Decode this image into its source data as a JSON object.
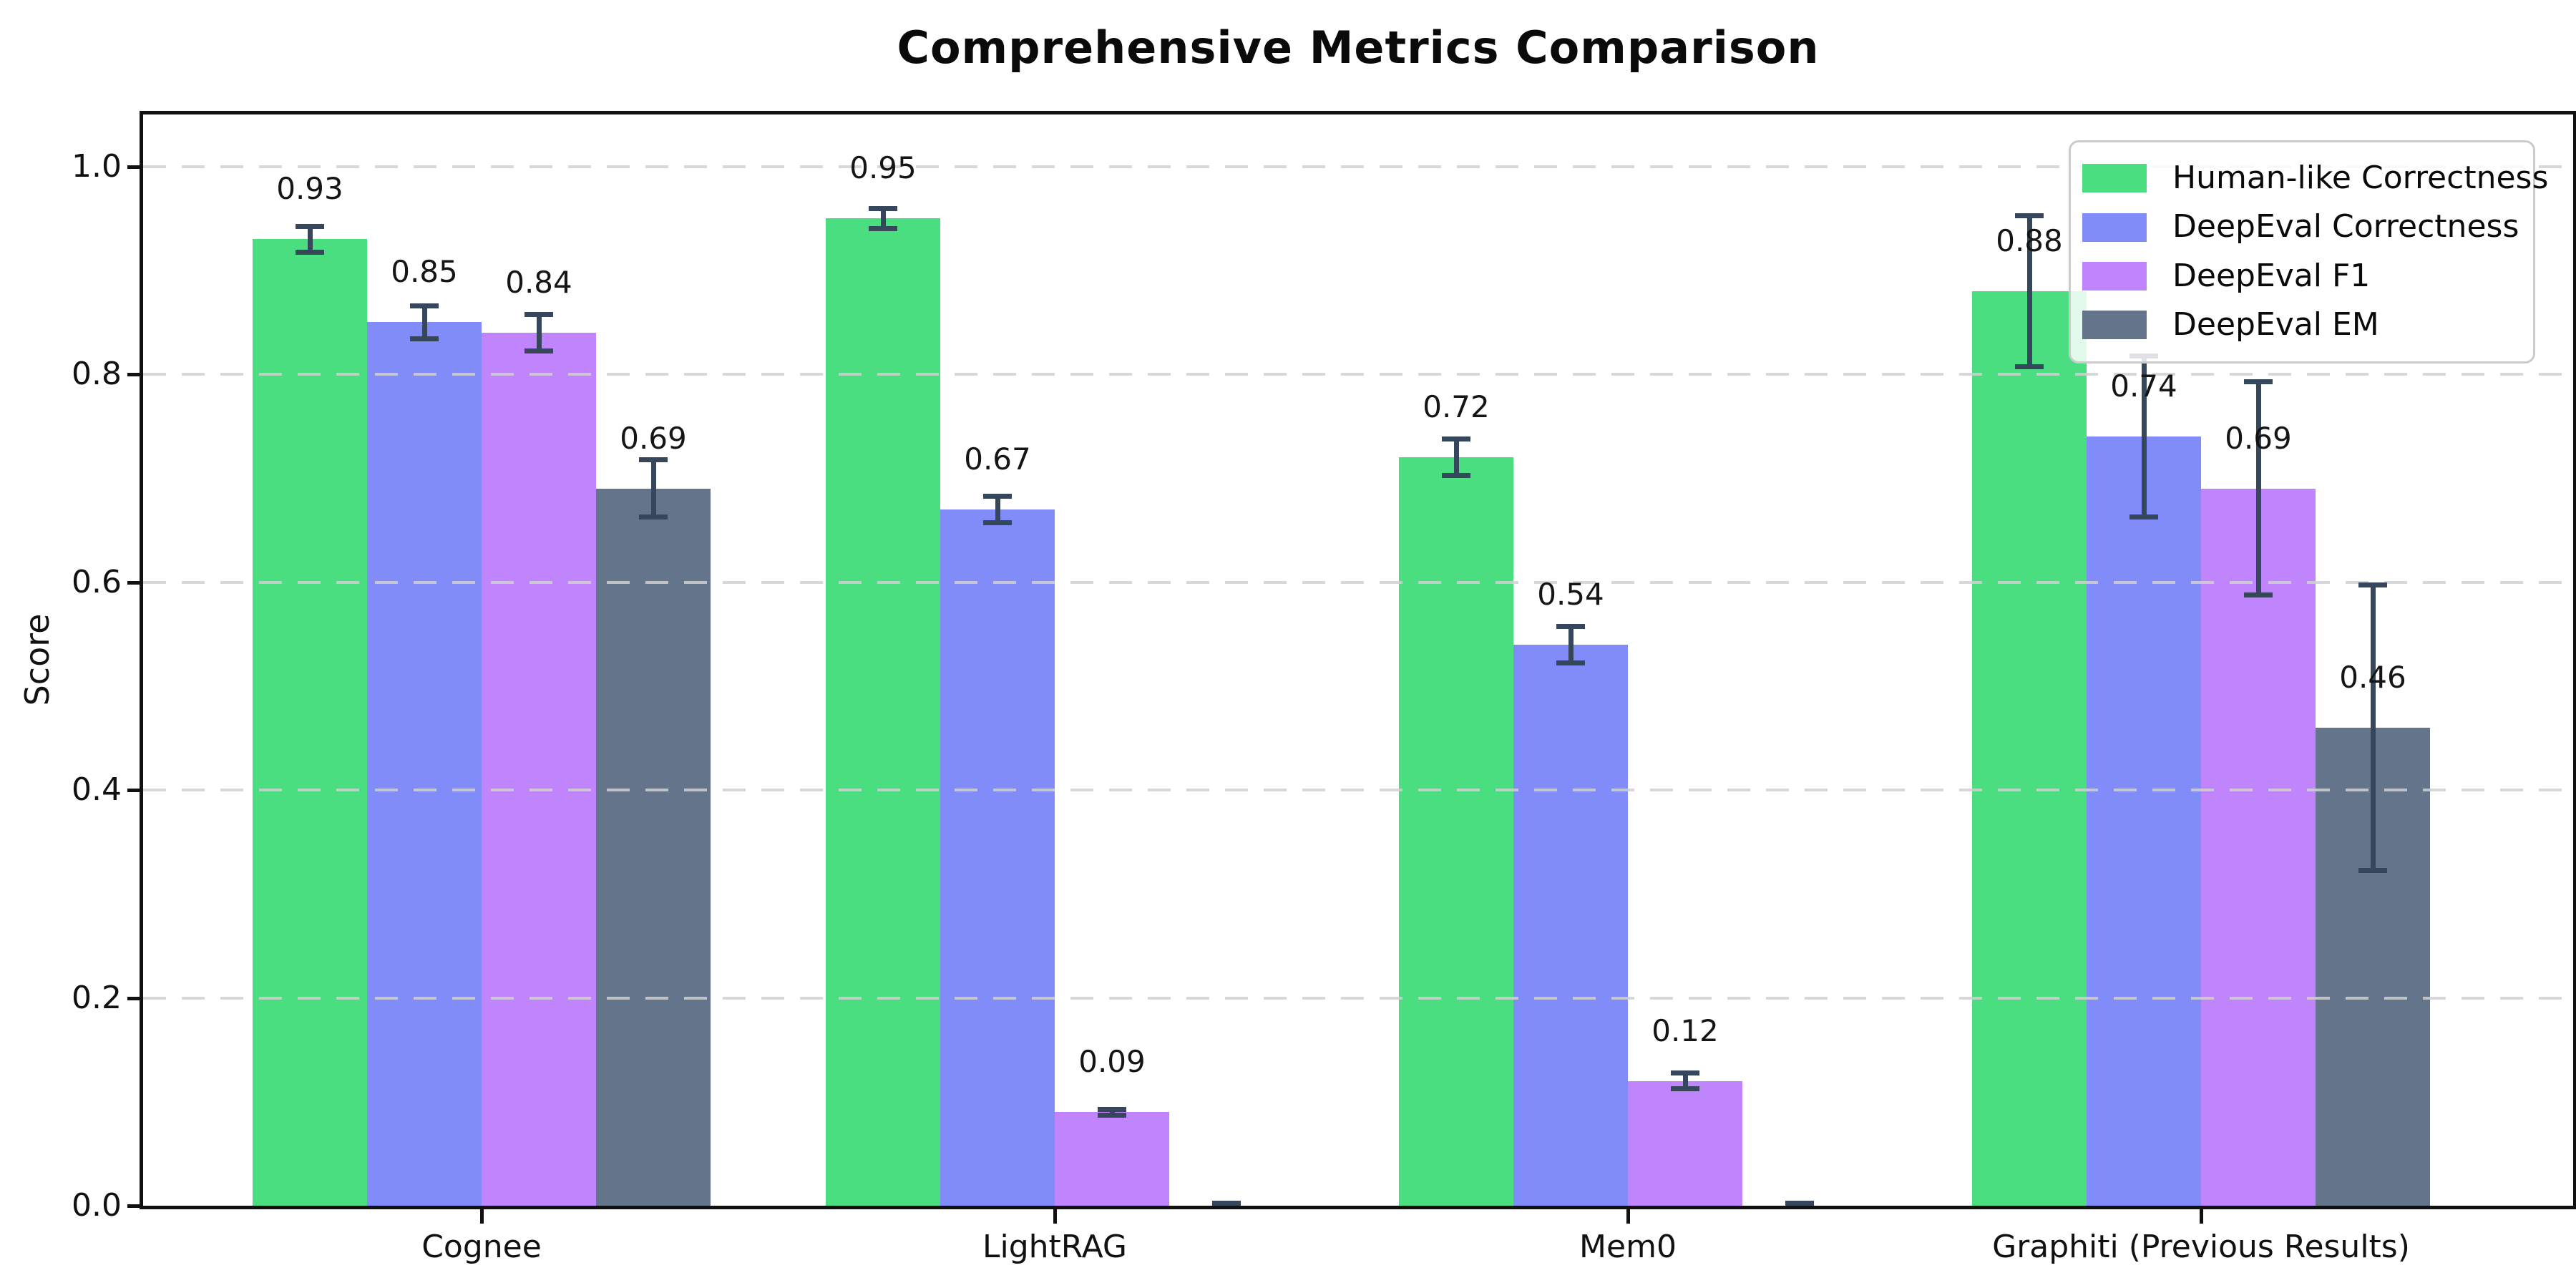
{
  "chart_data": {
    "type": "bar",
    "title": "Comprehensive Metrics Comparison",
    "ylabel": "Score",
    "xlabel": "",
    "categories": [
      "Cognee",
      "LightRAG",
      "Mem0",
      "Graphiti (Previous Results)"
    ],
    "series": [
      {
        "name": "Human-like Correctness",
        "color": "#4ade80",
        "values": [
          0.93,
          0.95,
          0.72,
          0.88
        ],
        "errors": [
          0.015,
          0.012,
          0.02,
          0.075
        ],
        "value_labels": [
          "0.93",
          "0.95",
          "0.72",
          "0.88"
        ]
      },
      {
        "name": "DeepEval Correctness",
        "color": "#818cf8",
        "values": [
          0.85,
          0.67,
          0.54,
          0.74
        ],
        "errors": [
          0.018,
          0.015,
          0.02,
          0.08
        ],
        "value_labels": [
          "0.85",
          "0.67",
          "0.54",
          "0.74"
        ]
      },
      {
        "name": "DeepEval F1",
        "color": "#c084fc",
        "values": [
          0.84,
          0.09,
          0.12,
          0.69
        ],
        "errors": [
          0.02,
          0.005,
          0.01,
          0.105
        ],
        "value_labels": [
          "0.84",
          "0.09",
          "0.12",
          "0.69"
        ]
      },
      {
        "name": "DeepEval EM",
        "color": "#64748b",
        "values": [
          0.69,
          0.0,
          0.0,
          0.46
        ],
        "errors": [
          0.03,
          0.002,
          0.002,
          0.14
        ],
        "value_labels": [
          "0.69",
          "",
          "",
          "0.46"
        ]
      }
    ],
    "yticks": [
      "0.0",
      "0.2",
      "0.4",
      "0.6",
      "0.8",
      "1.0"
    ],
    "ylim": [
      0,
      1.05
    ],
    "grid": "horizontal-dashed",
    "legend_position": "upper-right",
    "colors": {
      "error_bar": "#37475b",
      "grid": "#d0d0d0",
      "axis": "#111111",
      "background": "#ffffff"
    }
  }
}
